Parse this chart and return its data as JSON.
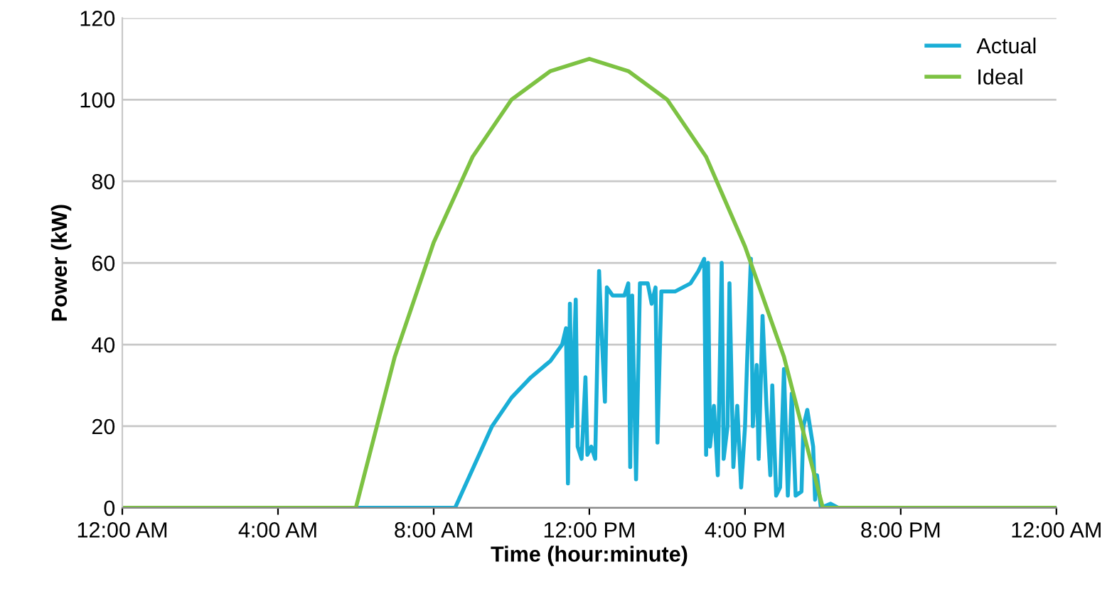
{
  "chart_data": {
    "type": "line",
    "xlabel": "Time (hour:minute)",
    "ylabel": "Power (kW)",
    "xlim": [
      0,
      24
    ],
    "xticks": [
      {
        "value": 0,
        "label": "12:00 AM"
      },
      {
        "value": 4,
        "label": "4:00 AM"
      },
      {
        "value": 8,
        "label": "8:00 AM"
      },
      {
        "value": 12,
        "label": "12:00 PM"
      },
      {
        "value": 16,
        "label": "4:00 PM"
      },
      {
        "value": 20,
        "label": "8:00 PM"
      },
      {
        "value": 24,
        "label": "12:00 AM"
      }
    ],
    "ylim": [
      0,
      120
    ],
    "yticks": [
      0,
      20,
      40,
      60,
      80,
      100,
      120
    ],
    "grid": "y",
    "legend": "top right",
    "marker": "none",
    "line_style": "solid",
    "series": [
      {
        "name": "Actual",
        "color": "#1aaed6",
        "x": [
          0,
          8.55,
          9.5,
          10,
          10.5,
          11,
          11.3,
          11.4,
          11.45,
          11.5,
          11.55,
          11.65,
          11.7,
          11.8,
          11.9,
          11.95,
          12.05,
          12.15,
          12.25,
          12.3,
          12.4,
          12.45,
          12.6,
          12.9,
          13.0,
          13.05,
          13.1,
          13.2,
          13.3,
          13.5,
          13.6,
          13.7,
          13.75,
          13.85,
          14.2,
          14.6,
          14.8,
          14.95,
          15.0,
          15.05,
          15.1,
          15.2,
          15.3,
          15.4,
          15.45,
          15.55,
          15.6,
          15.7,
          15.8,
          15.9,
          16.0,
          16.05,
          16.15,
          16.2,
          16.3,
          16.35,
          16.45,
          16.55,
          16.65,
          16.7,
          16.8,
          16.9,
          17.0,
          17.1,
          17.2,
          17.3,
          17.45,
          17.5,
          17.6,
          17.75,
          17.8,
          17.85,
          17.95,
          18.2,
          18.4,
          24
        ],
        "values": [
          0,
          0,
          20,
          27,
          32,
          36,
          40,
          44,
          6,
          50,
          20,
          51,
          15,
          12,
          32,
          13,
          15,
          12,
          58,
          46,
          26,
          54,
          52,
          52,
          55,
          10,
          52,
          7,
          55,
          55,
          50,
          54,
          16,
          53,
          53,
          55,
          58,
          61,
          13,
          60,
          15,
          25,
          8,
          60,
          12,
          20,
          55,
          10,
          25,
          5,
          20,
          35,
          61,
          20,
          35,
          12,
          47,
          25,
          8,
          30,
          3,
          5,
          34,
          3,
          28,
          3,
          4,
          20,
          24,
          15,
          2,
          8,
          0,
          1,
          0,
          0
        ]
      },
      {
        "name": "Ideal",
        "color": "#7dc243",
        "x": [
          0,
          6,
          7,
          8,
          9,
          10,
          11,
          12,
          13,
          14,
          15,
          16,
          17,
          18,
          24
        ],
        "values": [
          0,
          0,
          37,
          65,
          86,
          100,
          107,
          110,
          107,
          100,
          86,
          64,
          37,
          0,
          0
        ]
      }
    ]
  }
}
